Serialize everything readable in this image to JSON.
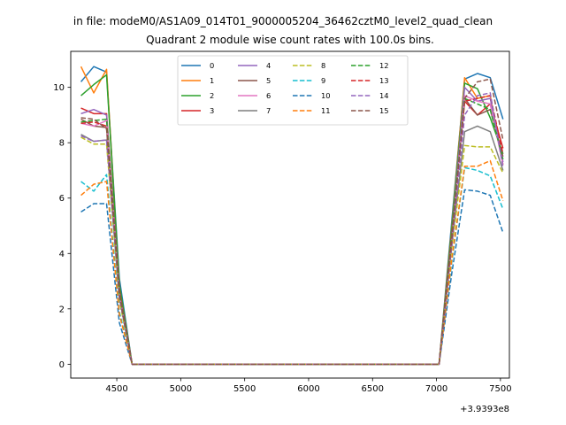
{
  "chart_data": {
    "type": "line",
    "suptitle": "in file: modeM0/AS1A09_014T01_9000005204_36462cztM0_level2_quad_clean",
    "title": "Quadrant 2 module wise count rates with 100.0s bins.",
    "xlabel": "",
    "ylabel": "",
    "x_offset_label": "+3.9393e8",
    "xlim": [
      4140,
      7570
    ],
    "ylim": [
      -0.5,
      11.3
    ],
    "x_ticks": [
      4500,
      5000,
      5500,
      6000,
      6500,
      7000,
      7500
    ],
    "x_tick_labels": [
      "4500",
      "5000",
      "5500",
      "6000",
      "6500",
      "7000",
      "7500"
    ],
    "y_ticks": [
      0,
      2,
      4,
      6,
      8,
      10
    ],
    "y_tick_labels": [
      "0",
      "2",
      "4",
      "6",
      "8",
      "10"
    ],
    "grid": false,
    "legend_placement": "upper center",
    "x": [
      4220,
      4320,
      4420,
      4520,
      4620,
      4720,
      4820,
      4920,
      5020,
      5120,
      5220,
      5320,
      5420,
      5520,
      5620,
      5720,
      5820,
      5920,
      6020,
      6120,
      6220,
      6320,
      6420,
      6520,
      6620,
      6720,
      6820,
      6920,
      7020,
      7120,
      7220,
      7320,
      7420,
      7520
    ],
    "series": [
      {
        "name": "0",
        "color": "#1f77b4",
        "dash": false,
        "values": [
          10.2,
          10.75,
          10.55,
          3.1,
          0,
          0,
          0,
          0,
          0,
          0,
          0,
          0,
          0,
          0,
          0,
          0,
          0,
          0,
          0,
          0,
          0,
          0,
          0,
          0,
          0,
          0,
          0,
          0,
          0,
          5.2,
          10.3,
          10.5,
          10.35,
          8.85
        ]
      },
      {
        "name": "1",
        "color": "#ff7f0e",
        "dash": false,
        "values": [
          10.75,
          9.8,
          10.65,
          2.8,
          0,
          0,
          0,
          0,
          0,
          0,
          0,
          0,
          0,
          0,
          0,
          0,
          0,
          0,
          0,
          0,
          0,
          0,
          0,
          0,
          0,
          0,
          0,
          0,
          0,
          5.0,
          10.35,
          9.6,
          9.7,
          7.2
        ]
      },
      {
        "name": "2",
        "color": "#2ca02c",
        "dash": false,
        "values": [
          9.7,
          10.1,
          10.45,
          2.9,
          0,
          0,
          0,
          0,
          0,
          0,
          0,
          0,
          0,
          0,
          0,
          0,
          0,
          0,
          0,
          0,
          0,
          0,
          0,
          0,
          0,
          0,
          0,
          0,
          0,
          4.9,
          10.15,
          9.95,
          8.9,
          7.6
        ]
      },
      {
        "name": "3",
        "color": "#d62728",
        "dash": false,
        "values": [
          9.25,
          9.05,
          9.05,
          2.7,
          0,
          0,
          0,
          0,
          0,
          0,
          0,
          0,
          0,
          0,
          0,
          0,
          0,
          0,
          0,
          0,
          0,
          0,
          0,
          0,
          0,
          0,
          0,
          0,
          0,
          4.7,
          9.5,
          9.0,
          9.4,
          7.8
        ]
      },
      {
        "name": "4",
        "color": "#9467bd",
        "dash": false,
        "values": [
          9.05,
          9.2,
          9.0,
          2.6,
          0,
          0,
          0,
          0,
          0,
          0,
          0,
          0,
          0,
          0,
          0,
          0,
          0,
          0,
          0,
          0,
          0,
          0,
          0,
          0,
          0,
          0,
          0,
          0,
          0,
          4.6,
          10.0,
          9.5,
          9.6,
          7.3
        ]
      },
      {
        "name": "5",
        "color": "#8c564b",
        "dash": false,
        "values": [
          8.85,
          8.6,
          8.55,
          2.6,
          0,
          0,
          0,
          0,
          0,
          0,
          0,
          0,
          0,
          0,
          0,
          0,
          0,
          0,
          0,
          0,
          0,
          0,
          0,
          0,
          0,
          0,
          0,
          0,
          0,
          4.5,
          9.6,
          9.0,
          9.2,
          7.5
        ]
      },
      {
        "name": "6",
        "color": "#e377c2",
        "dash": false,
        "values": [
          8.7,
          8.6,
          8.8,
          2.5,
          0,
          0,
          0,
          0,
          0,
          0,
          0,
          0,
          0,
          0,
          0,
          0,
          0,
          0,
          0,
          0,
          0,
          0,
          0,
          0,
          0,
          0,
          0,
          0,
          0,
          4.4,
          9.7,
          9.5,
          9.4,
          7.2
        ]
      },
      {
        "name": "7",
        "color": "#7f7f7f",
        "dash": false,
        "values": [
          8.3,
          8.05,
          8.1,
          2.4,
          0,
          0,
          0,
          0,
          0,
          0,
          0,
          0,
          0,
          0,
          0,
          0,
          0,
          0,
          0,
          0,
          0,
          0,
          0,
          0,
          0,
          0,
          0,
          0,
          0,
          4.3,
          8.4,
          8.6,
          8.4,
          7.0
        ]
      },
      {
        "name": "8",
        "color": "#bcbd22",
        "dash": true,
        "values": [
          8.2,
          7.95,
          7.95,
          2.3,
          0,
          0,
          0,
          0,
          0,
          0,
          0,
          0,
          0,
          0,
          0,
          0,
          0,
          0,
          0,
          0,
          0,
          0,
          0,
          0,
          0,
          0,
          0,
          0,
          0,
          4.2,
          7.9,
          7.85,
          7.85,
          6.9
        ]
      },
      {
        "name": "9",
        "color": "#17becf",
        "dash": true,
        "values": [
          6.6,
          6.25,
          6.85,
          1.9,
          0,
          0,
          0,
          0,
          0,
          0,
          0,
          0,
          0,
          0,
          0,
          0,
          0,
          0,
          0,
          0,
          0,
          0,
          0,
          0,
          0,
          0,
          0,
          0,
          0,
          3.7,
          7.1,
          7.0,
          6.8,
          5.6
        ]
      },
      {
        "name": "10",
        "color": "#1f77b4",
        "dash": true,
        "values": [
          5.5,
          5.8,
          5.8,
          1.5,
          0,
          0,
          0,
          0,
          0,
          0,
          0,
          0,
          0,
          0,
          0,
          0,
          0,
          0,
          0,
          0,
          0,
          0,
          0,
          0,
          0,
          0,
          0,
          0,
          0,
          3.3,
          6.3,
          6.25,
          6.1,
          4.75
        ]
      },
      {
        "name": "11",
        "color": "#ff7f0e",
        "dash": true,
        "values": [
          6.1,
          6.5,
          6.6,
          1.8,
          0,
          0,
          0,
          0,
          0,
          0,
          0,
          0,
          0,
          0,
          0,
          0,
          0,
          0,
          0,
          0,
          0,
          0,
          0,
          0,
          0,
          0,
          0,
          0,
          0,
          3.8,
          7.15,
          7.15,
          7.35,
          5.9
        ]
      },
      {
        "name": "12",
        "color": "#2ca02c",
        "dash": true,
        "values": [
          8.75,
          8.8,
          8.85,
          2.6,
          0,
          0,
          0,
          0,
          0,
          0,
          0,
          0,
          0,
          0,
          0,
          0,
          0,
          0,
          0,
          0,
          0,
          0,
          0,
          0,
          0,
          0,
          0,
          0,
          0,
          4.6,
          9.6,
          9.4,
          9.2,
          7.4
        ]
      },
      {
        "name": "13",
        "color": "#d62728",
        "dash": true,
        "values": [
          8.7,
          8.75,
          8.6,
          2.5,
          0,
          0,
          0,
          0,
          0,
          0,
          0,
          0,
          0,
          0,
          0,
          0,
          0,
          0,
          0,
          0,
          0,
          0,
          0,
          0,
          0,
          0,
          0,
          0,
          0,
          4.5,
          9.5,
          9.6,
          9.7,
          7.6
        ]
      },
      {
        "name": "14",
        "color": "#9467bd",
        "dash": true,
        "values": [
          8.25,
          8.05,
          8.1,
          2.4,
          0,
          0,
          0,
          0,
          0,
          0,
          0,
          0,
          0,
          0,
          0,
          0,
          0,
          0,
          0,
          0,
          0,
          0,
          0,
          0,
          0,
          0,
          0,
          0,
          0,
          4.3,
          9.0,
          9.7,
          9.8,
          7.1
        ]
      },
      {
        "name": "15",
        "color": "#8c564b",
        "dash": true,
        "values": [
          8.9,
          8.85,
          8.5,
          2.5,
          0,
          0,
          0,
          0,
          0,
          0,
          0,
          0,
          0,
          0,
          0,
          0,
          0,
          0,
          0,
          0,
          0,
          0,
          0,
          0,
          0,
          0,
          0,
          0,
          0,
          4.5,
          9.6,
          10.2,
          10.3,
          8.1
        ]
      }
    ]
  }
}
